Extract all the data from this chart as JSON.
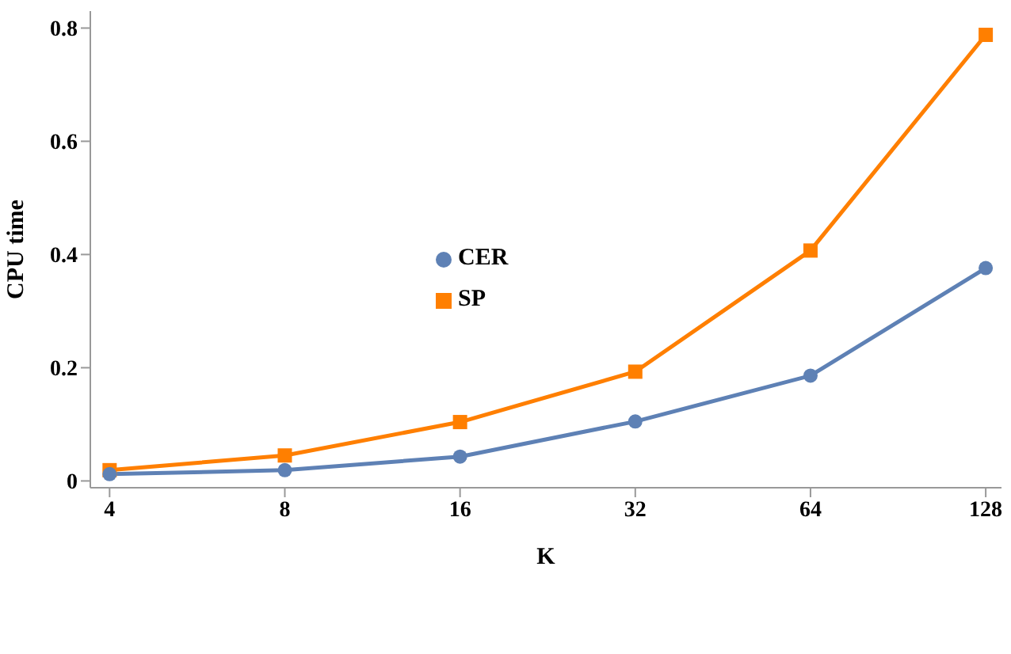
{
  "chart_data": {
    "type": "line",
    "xlabel": "K",
    "ylabel": "CPU time",
    "categories": [
      "4",
      "8",
      "16",
      "32",
      "64",
      "128"
    ],
    "series": [
      {
        "name": "CER",
        "color": "#5e81b5",
        "marker": "circle",
        "values": [
          0.012,
          0.019,
          0.043,
          0.105,
          0.186,
          0.376
        ]
      },
      {
        "name": "SP",
        "color": "#ff7f00",
        "marker": "square",
        "values": [
          0.019,
          0.045,
          0.104,
          0.193,
          0.407,
          0.788
        ]
      }
    ],
    "ylim": [
      -0.012,
      0.83
    ],
    "yticks": [
      0,
      0.2,
      0.4,
      0.6,
      0.8
    ],
    "grid": false,
    "legend": "center"
  }
}
